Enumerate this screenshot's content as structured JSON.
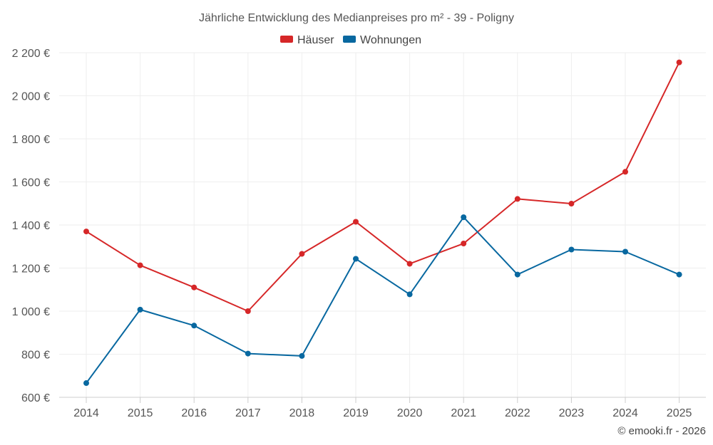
{
  "chart_data": {
    "type": "line",
    "title": "Jährliche Entwicklung des Medianpreises pro m² - 39 - Poligny",
    "x": [
      "2014",
      "2015",
      "2016",
      "2017",
      "2018",
      "2019",
      "2020",
      "2021",
      "2022",
      "2023",
      "2024",
      "2025"
    ],
    "series": [
      {
        "name": "Häuser",
        "color": "#d62728",
        "values": [
          1370,
          1213,
          1110,
          1000,
          1266,
          1415,
          1220,
          1314,
          1521,
          1499,
          1647,
          2155
        ]
      },
      {
        "name": "Wohnungen",
        "color": "#0868a0",
        "values": [
          666,
          1007,
          933,
          803,
          792,
          1243,
          1078,
          1436,
          1170,
          1286,
          1276,
          1170
        ]
      }
    ],
    "ylim": [
      600,
      2200
    ],
    "yticks": [
      600,
      800,
      1000,
      1200,
      1400,
      1600,
      1800,
      2000,
      2200
    ],
    "ytick_labels": [
      "600 €",
      "800 €",
      "1 000 €",
      "1 200 €",
      "1 400 €",
      "1 600 €",
      "1 800 €",
      "2 000 €",
      "2 200 €"
    ],
    "legend_position": "top-center",
    "grid": true
  },
  "credit": "© emooki.fr - 2026"
}
